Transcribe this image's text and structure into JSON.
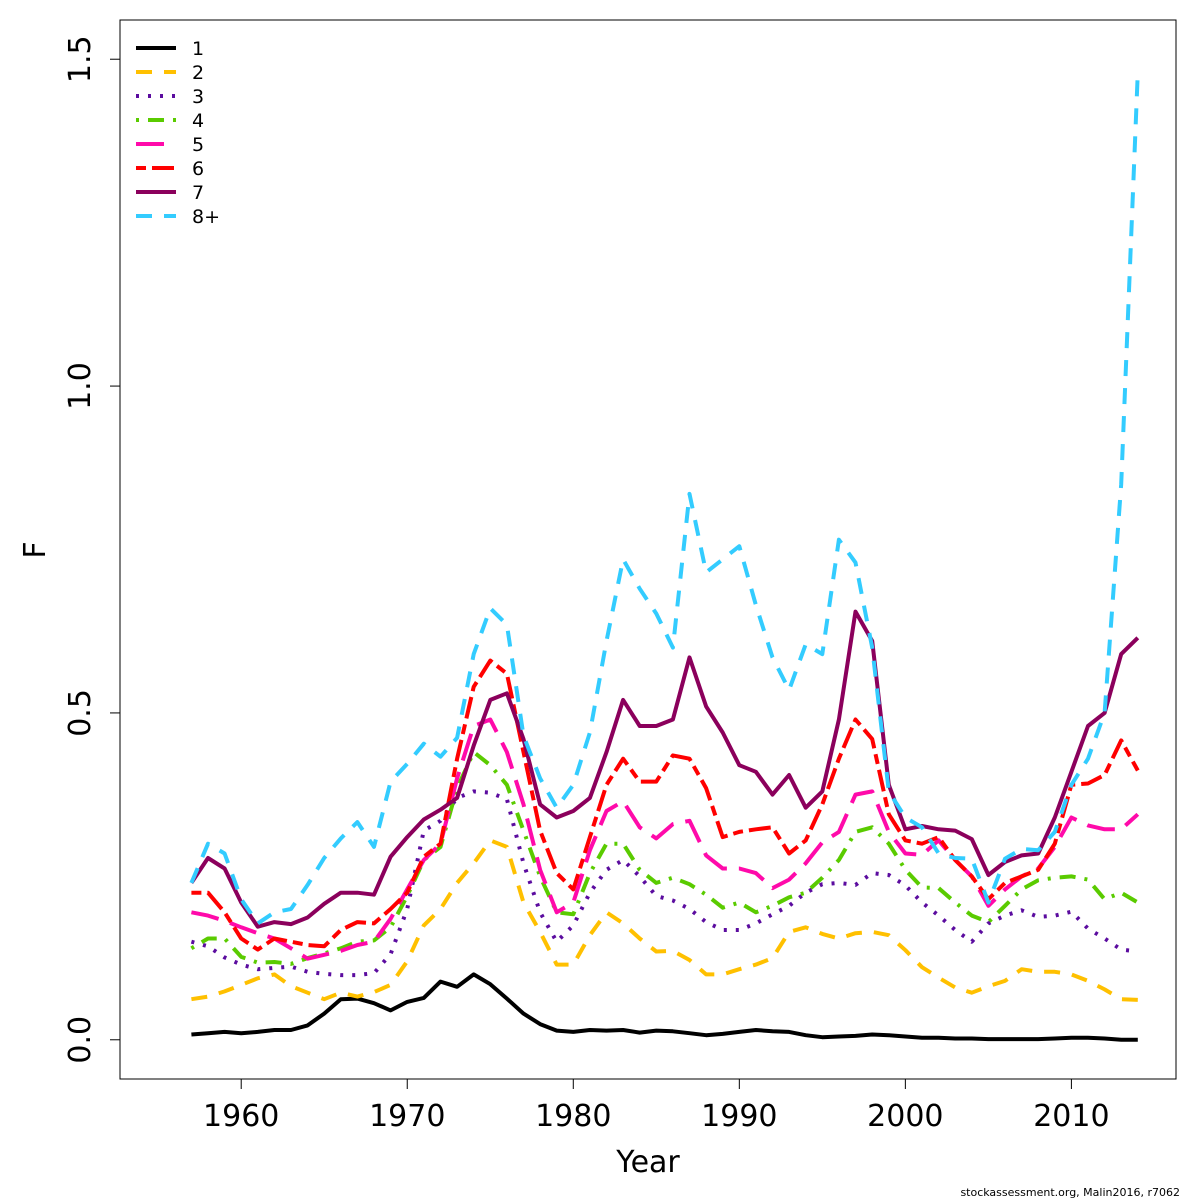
{
  "chart_data": {
    "type": "line",
    "title": "",
    "xlabel": "Year",
    "ylabel": "F",
    "xlim": [
      1952.7,
      2016.3
    ],
    "ylim": [
      -0.06,
      1.56
    ],
    "x_ticks": [
      1960,
      1970,
      1980,
      1990,
      2000,
      2010
    ],
    "x_tick_labels": [
      "1960",
      "1970",
      "1980",
      "1990",
      "2000",
      "2010"
    ],
    "y_ticks": [
      0.0,
      0.5,
      1.0,
      1.5
    ],
    "y_tick_labels": [
      "0.0",
      "0.5",
      "1.0",
      "1.5"
    ],
    "grid": false,
    "legend_position": "top-left",
    "credit": "stockassessment.org, Malin2016, r7062",
    "x": [
      1957,
      1958,
      1959,
      1960,
      1961,
      1962,
      1963,
      1964,
      1965,
      1966,
      1967,
      1968,
      1969,
      1970,
      1971,
      1972,
      1973,
      1974,
      1975,
      1976,
      1977,
      1978,
      1979,
      1980,
      1981,
      1982,
      1983,
      1984,
      1985,
      1986,
      1987,
      1988,
      1989,
      1990,
      1991,
      1992,
      1993,
      1994,
      1995,
      1996,
      1997,
      1998,
      1999,
      2000,
      2001,
      2002,
      2003,
      2004,
      2005,
      2006,
      2007,
      2008,
      2009,
      2010,
      2011,
      2012,
      2013,
      2014
    ],
    "series": [
      {
        "name": "1",
        "color": "#000000",
        "dash": "solid",
        "values": [
          0.008,
          0.01,
          0.012,
          0.01,
          0.012,
          0.015,
          0.015,
          0.022,
          0.04,
          0.062,
          0.063,
          0.056,
          0.045,
          0.058,
          0.064,
          0.089,
          0.081,
          0.1,
          0.085,
          0.063,
          0.04,
          0.024,
          0.014,
          0.012,
          0.015,
          0.014,
          0.015,
          0.011,
          0.014,
          0.013,
          0.01,
          0.007,
          0.009,
          0.012,
          0.015,
          0.013,
          0.012,
          0.007,
          0.004,
          0.005,
          0.006,
          0.008,
          0.007,
          0.005,
          0.003,
          0.003,
          0.002,
          0.002,
          0.001,
          0.001,
          0.001,
          0.001,
          0.002,
          0.003,
          0.003,
          0.002,
          0.0,
          0.0
        ]
      },
      {
        "name": "2",
        "color": "#FFC000",
        "dash": "dashed",
        "values": [
          0.062,
          0.066,
          0.074,
          0.084,
          0.094,
          0.1,
          0.082,
          0.072,
          0.062,
          0.072,
          0.066,
          0.073,
          0.084,
          0.12,
          0.175,
          0.2,
          0.24,
          0.27,
          0.305,
          0.295,
          0.21,
          0.165,
          0.115,
          0.115,
          0.16,
          0.195,
          0.178,
          0.155,
          0.135,
          0.136,
          0.122,
          0.1,
          0.1,
          0.108,
          0.115,
          0.125,
          0.165,
          0.172,
          0.162,
          0.155,
          0.163,
          0.165,
          0.16,
          0.137,
          0.111,
          0.095,
          0.08,
          0.072,
          0.082,
          0.09,
          0.108,
          0.104,
          0.104,
          0.1,
          0.09,
          0.077,
          0.062,
          0.061
        ]
      },
      {
        "name": "3",
        "color": "#5B0C9F",
        "dash": "dotted",
        "values": [
          0.15,
          0.143,
          0.126,
          0.115,
          0.108,
          0.11,
          0.112,
          0.104,
          0.101,
          0.099,
          0.099,
          0.102,
          0.131,
          0.2,
          0.32,
          0.335,
          0.37,
          0.38,
          0.378,
          0.368,
          0.27,
          0.195,
          0.15,
          0.175,
          0.225,
          0.26,
          0.275,
          0.25,
          0.22,
          0.213,
          0.2,
          0.18,
          0.168,
          0.168,
          0.178,
          0.192,
          0.205,
          0.225,
          0.238,
          0.24,
          0.237,
          0.255,
          0.252,
          0.236,
          0.21,
          0.19,
          0.168,
          0.15,
          0.178,
          0.19,
          0.198,
          0.188,
          0.19,
          0.196,
          0.17,
          0.155,
          0.138,
          0.135
        ]
      },
      {
        "name": "4",
        "color": "#5ACB00",
        "dash": "dashdot",
        "values": [
          0.14,
          0.155,
          0.155,
          0.127,
          0.118,
          0.119,
          0.116,
          0.125,
          0.132,
          0.14,
          0.15,
          0.152,
          0.172,
          0.22,
          0.275,
          0.295,
          0.385,
          0.44,
          0.42,
          0.39,
          0.32,
          0.25,
          0.195,
          0.192,
          0.255,
          0.3,
          0.3,
          0.26,
          0.24,
          0.248,
          0.238,
          0.222,
          0.202,
          0.21,
          0.195,
          0.205,
          0.218,
          0.225,
          0.248,
          0.275,
          0.318,
          0.325,
          0.3,
          0.26,
          0.233,
          0.232,
          0.21,
          0.19,
          0.18,
          0.205,
          0.23,
          0.244,
          0.248,
          0.25,
          0.245,
          0.215,
          0.225,
          0.21
        ]
      },
      {
        "name": "5",
        "color": "#FF0AAA",
        "dash": "longdash",
        "values": [
          0.195,
          0.19,
          0.182,
          0.172,
          0.163,
          0.155,
          0.14,
          0.124,
          0.13,
          0.136,
          0.145,
          0.15,
          0.185,
          0.23,
          0.275,
          0.3,
          0.4,
          0.48,
          0.49,
          0.44,
          0.36,
          0.26,
          0.195,
          0.21,
          0.29,
          0.35,
          0.365,
          0.325,
          0.308,
          0.33,
          0.335,
          0.282,
          0.262,
          0.262,
          0.255,
          0.232,
          0.245,
          0.27,
          0.302,
          0.318,
          0.375,
          0.38,
          0.318,
          0.285,
          0.283,
          0.305,
          0.275,
          0.25,
          0.205,
          0.23,
          0.25,
          0.262,
          0.295,
          0.34,
          0.328,
          0.322,
          0.322,
          0.345
        ]
      },
      {
        "name": "6",
        "color": "#FF0000",
        "dash": "twodash",
        "values": [
          0.225,
          0.225,
          0.195,
          0.155,
          0.138,
          0.155,
          0.15,
          0.145,
          0.143,
          0.168,
          0.18,
          0.178,
          0.2,
          0.225,
          0.28,
          0.3,
          0.43,
          0.54,
          0.58,
          0.56,
          0.44,
          0.32,
          0.255,
          0.23,
          0.31,
          0.39,
          0.43,
          0.395,
          0.395,
          0.435,
          0.43,
          0.385,
          0.31,
          0.318,
          0.322,
          0.325,
          0.285,
          0.305,
          0.36,
          0.43,
          0.49,
          0.46,
          0.345,
          0.305,
          0.3,
          0.31,
          0.275,
          0.25,
          0.215,
          0.24,
          0.25,
          0.26,
          0.3,
          0.39,
          0.392,
          0.405,
          0.458,
          0.412
        ]
      },
      {
        "name": "7",
        "color": "#8B005C",
        "dash": "solid",
        "values": [
          0.24,
          0.278,
          0.262,
          0.21,
          0.173,
          0.18,
          0.177,
          0.187,
          0.208,
          0.225,
          0.225,
          0.222,
          0.28,
          0.31,
          0.337,
          0.352,
          0.37,
          0.45,
          0.52,
          0.53,
          0.46,
          0.36,
          0.34,
          0.35,
          0.37,
          0.44,
          0.52,
          0.48,
          0.48,
          0.49,
          0.585,
          0.51,
          0.47,
          0.42,
          0.41,
          0.375,
          0.405,
          0.355,
          0.38,
          0.49,
          0.655,
          0.61,
          0.39,
          0.322,
          0.327,
          0.322,
          0.32,
          0.307,
          0.252,
          0.272,
          0.282,
          0.285,
          0.34,
          0.41,
          0.48,
          0.5,
          0.59,
          0.615
        ]
      },
      {
        "name": "8+",
        "color": "#33CCFF",
        "dash": "dashed",
        "values": [
          0.24,
          0.3,
          0.285,
          0.215,
          0.178,
          0.195,
          0.2,
          0.237,
          0.278,
          0.308,
          0.333,
          0.295,
          0.395,
          0.422,
          0.453,
          0.433,
          0.462,
          0.59,
          0.66,
          0.635,
          0.465,
          0.4,
          0.355,
          0.39,
          0.47,
          0.61,
          0.735,
          0.69,
          0.652,
          0.6,
          0.835,
          0.715,
          0.735,
          0.755,
          0.665,
          0.585,
          0.535,
          0.605,
          0.59,
          0.765,
          0.73,
          0.6,
          0.38,
          0.34,
          0.325,
          0.285,
          0.278,
          0.277,
          0.21,
          0.277,
          0.292,
          0.29,
          0.318,
          0.39,
          0.43,
          0.5,
          0.85,
          1.48
        ]
      }
    ]
  }
}
